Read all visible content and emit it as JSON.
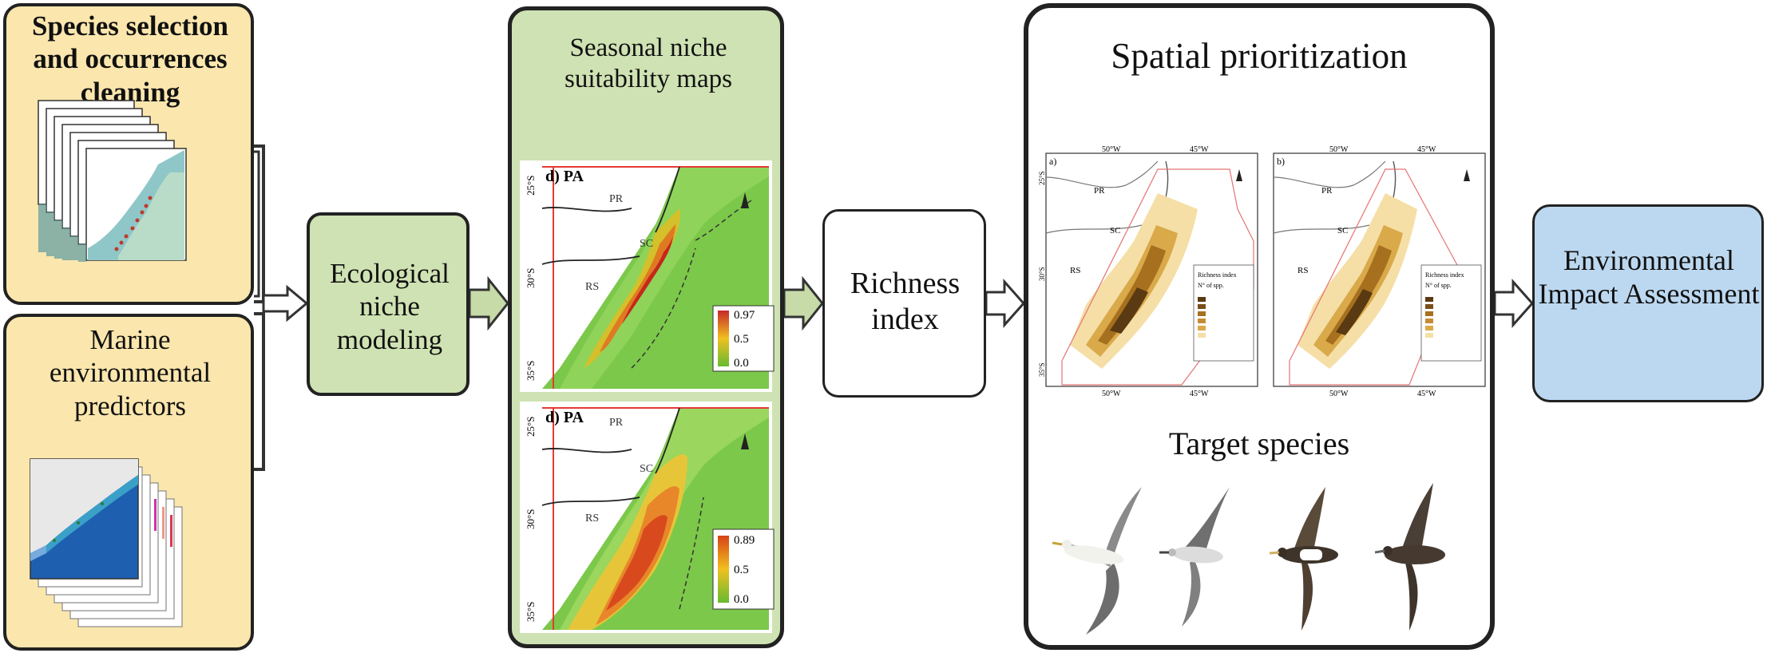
{
  "boxes": {
    "species": "Species selection and occurrences cleaning",
    "marine": "Marine environmental predictors",
    "eco": "Ecological niche modeling",
    "seasonal": "Seasonal niche suitability maps",
    "richness": "Richness index",
    "spatial": "Spatial prioritization",
    "target": "Target species",
    "eia": "Environmental Impact Assessment"
  },
  "maps": {
    "panel_label": "d) PA",
    "states": [
      "PR",
      "SC",
      "RS"
    ],
    "lat_ticks": [
      "25°S",
      "30°S",
      "35°S"
    ],
    "top_legend": [
      "0.97",
      "0.5",
      "0.0"
    ],
    "bottom_legend": [
      "0.89",
      "0.5",
      "0.0"
    ]
  },
  "prior_maps": {
    "panel_a": "a)",
    "panel_b": "b)",
    "states": [
      "PR",
      "SC",
      "RS"
    ],
    "lon_ticks": [
      "50°W",
      "45°W"
    ],
    "lat_ticks": [
      "25°S",
      "30°S",
      "35°S"
    ],
    "legend_title": "Richness index",
    "legend_sub": "N° of spp."
  },
  "colors": {
    "yellow_box": "#fbe6ad",
    "green_box": "#cfe2b3",
    "blue_box": "#bcd8f0",
    "arrow_fill": "#c6dba8"
  }
}
